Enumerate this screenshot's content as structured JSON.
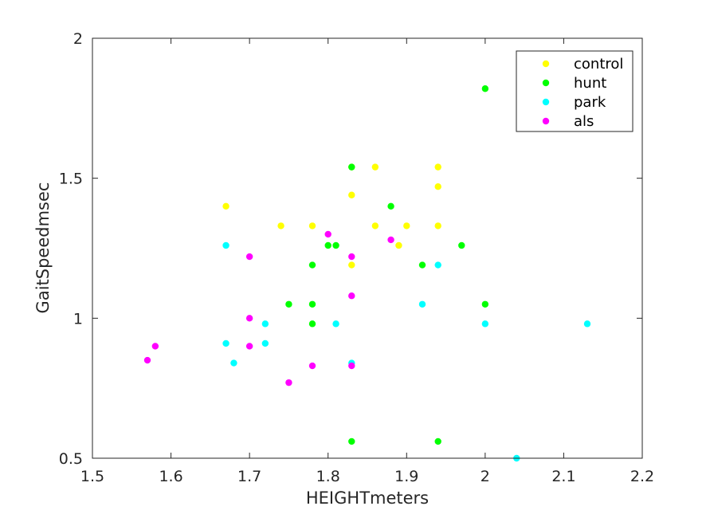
{
  "chart_data": {
    "type": "scatter",
    "title": "",
    "xlabel": "HEIGHTmeters",
    "ylabel": "GaitSpeedmsec",
    "xlim": [
      1.5,
      2.2
    ],
    "ylim": [
      0.5,
      2
    ],
    "xticks": [
      "1.5",
      "1.6",
      "1.7",
      "1.8",
      "1.9",
      "2",
      "2.1",
      "2.2"
    ],
    "yticks": [
      "0.5",
      "1",
      "1.5",
      "2"
    ],
    "grid": false,
    "legend_position": "top-right",
    "series": [
      {
        "name": "control",
        "color": "#ffff00",
        "points": [
          [
            1.67,
            1.4
          ],
          [
            1.74,
            1.33
          ],
          [
            1.78,
            1.33
          ],
          [
            1.83,
            1.54
          ],
          [
            1.83,
            1.44
          ],
          [
            1.83,
            1.19
          ],
          [
            1.86,
            1.54
          ],
          [
            1.86,
            1.33
          ],
          [
            1.89,
            1.26
          ],
          [
            1.9,
            1.33
          ],
          [
            1.94,
            1.54
          ],
          [
            1.94,
            1.47
          ],
          [
            1.94,
            1.33
          ]
        ]
      },
      {
        "name": "hunt",
        "color": "#00ff00",
        "points": [
          [
            1.75,
            1.05
          ],
          [
            1.78,
            1.19
          ],
          [
            1.78,
            1.05
          ],
          [
            1.78,
            0.98
          ],
          [
            1.8,
            1.26
          ],
          [
            1.81,
            1.26
          ],
          [
            1.83,
            1.54
          ],
          [
            1.83,
            0.56
          ],
          [
            1.88,
            1.4
          ],
          [
            1.92,
            1.19
          ],
          [
            1.94,
            0.56
          ],
          [
            1.97,
            1.26
          ],
          [
            2.0,
            1.82
          ],
          [
            2.0,
            1.05
          ]
        ]
      },
      {
        "name": "park",
        "color": "#00ffff",
        "points": [
          [
            1.67,
            1.26
          ],
          [
            1.67,
            0.91
          ],
          [
            1.68,
            0.84
          ],
          [
            1.72,
            0.98
          ],
          [
            1.72,
            0.91
          ],
          [
            1.81,
            0.98
          ],
          [
            1.83,
            0.84
          ],
          [
            1.92,
            1.05
          ],
          [
            1.94,
            1.19
          ],
          [
            2.0,
            0.98
          ],
          [
            2.04,
            0.5
          ],
          [
            2.13,
            0.98
          ]
        ]
      },
      {
        "name": "als",
        "color": "#ff00ff",
        "points": [
          [
            1.57,
            0.85
          ],
          [
            1.58,
            0.9
          ],
          [
            1.7,
            1.22
          ],
          [
            1.7,
            1.0
          ],
          [
            1.7,
            0.9
          ],
          [
            1.75,
            0.77
          ],
          [
            1.78,
            0.83
          ],
          [
            1.8,
            1.3
          ],
          [
            1.83,
            1.22
          ],
          [
            1.83,
            1.08
          ],
          [
            1.83,
            0.83
          ],
          [
            1.88,
            1.28
          ]
        ]
      }
    ]
  }
}
